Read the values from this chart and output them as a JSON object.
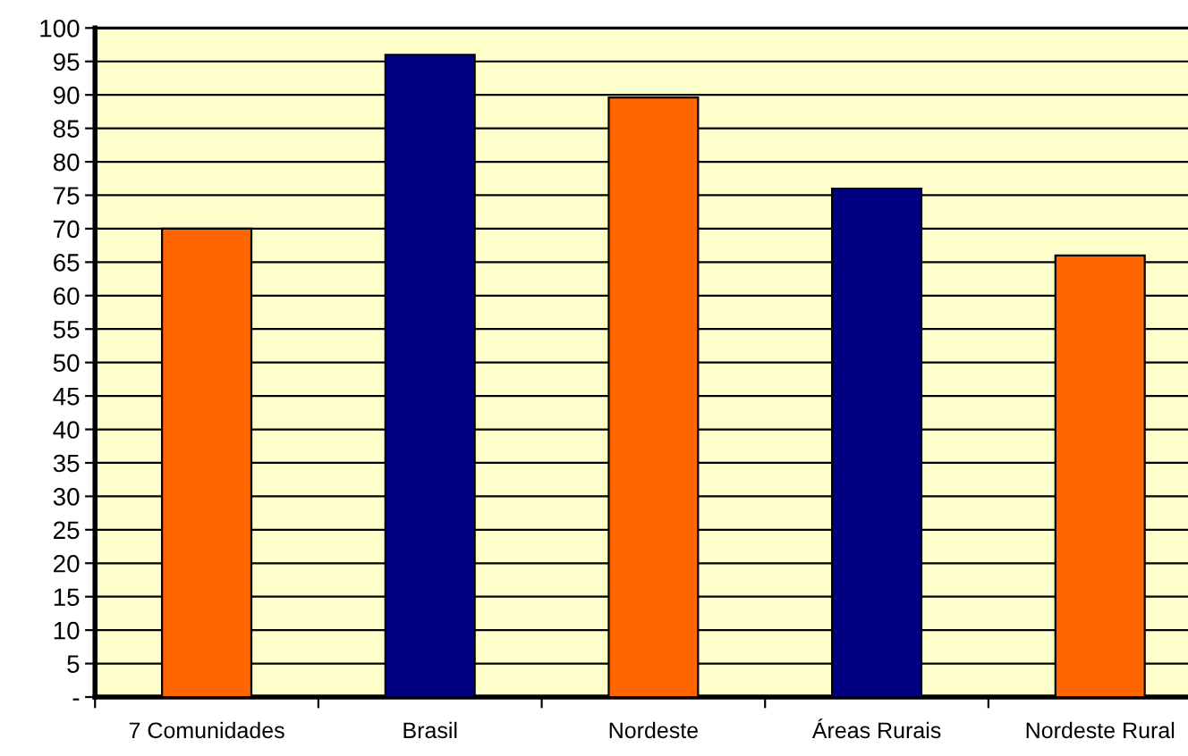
{
  "chart_data": {
    "type": "bar",
    "categories": [
      "7 Comunidades",
      "Brasil",
      "Nordeste",
      "Áreas Rurais",
      "Nordeste Rural"
    ],
    "values": [
      70,
      96,
      89.6,
      76,
      66
    ],
    "colors": [
      "#ff6600",
      "#000080",
      "#ff6600",
      "#000080",
      "#ff6600"
    ],
    "ylim": [
      0,
      100
    ],
    "yticks": [
      {
        "value": 0,
        "label": "-"
      },
      5,
      10,
      15,
      20,
      25,
      30,
      35,
      40,
      45,
      50,
      55,
      60,
      65,
      70,
      75,
      80,
      85,
      90,
      95,
      100
    ],
    "grid": "y",
    "legend": false
  }
}
